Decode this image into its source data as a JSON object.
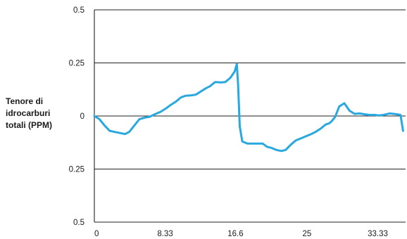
{
  "chart_data": {
    "type": "line",
    "title": "",
    "ylabel_lines": [
      "Tenore di",
      "idrocarburi",
      "totali (PPM)"
    ],
    "xlabel": "",
    "x_tick_labels": [
      {
        "value": 0,
        "label": "0"
      },
      {
        "value": 8.33,
        "label": "8.33"
      },
      {
        "value": 16.6,
        "label": "16.6"
      },
      {
        "value": 25,
        "label": "25"
      },
      {
        "value": 33.33,
        "label": "33.33"
      }
    ],
    "y_tick_labels": [
      {
        "value": 0.5,
        "label": "0.5"
      },
      {
        "value": 0.25,
        "label": "0.25"
      },
      {
        "value": 0,
        "label": "0"
      },
      {
        "value": -0.25,
        "label": "0.25"
      },
      {
        "value": -0.5,
        "label": "0.5"
      }
    ],
    "xlim": [
      0,
      36.6
    ],
    "ylim": [
      -0.5,
      0.5
    ],
    "grid": "horizontal",
    "line_color": "#29a8df",
    "series": [
      {
        "name": "",
        "x": [
          0,
          0.6,
          1.2,
          1.8,
          2.4,
          3.0,
          3.6,
          4.1,
          4.7,
          5.3,
          5.9,
          6.5,
          7.1,
          7.8,
          8.4,
          8.9,
          9.6,
          10.2,
          10.7,
          11.3,
          11.9,
          12.5,
          13.1,
          13.6,
          14.2,
          14.9,
          15.4,
          16.0,
          16.5,
          16.75,
          16.9,
          17.1,
          17.4,
          18.0,
          18.6,
          19.2,
          19.8,
          20.3,
          20.8,
          21.4,
          22.0,
          22.5,
          23.1,
          23.7,
          24.3,
          24.9,
          25.5,
          26.0,
          26.6,
          27.2,
          27.6,
          27.9,
          28.3,
          28.8,
          29.4,
          30.0,
          30.6,
          31.2,
          31.8,
          32.4,
          33.0,
          33.5,
          34.1,
          34.7,
          35.2,
          35.6,
          36.0,
          36.3
        ],
        "y": [
          0.0,
          -0.015,
          -0.045,
          -0.07,
          -0.075,
          -0.08,
          -0.085,
          -0.075,
          -0.045,
          -0.015,
          -0.008,
          -0.004,
          0.008,
          0.02,
          0.035,
          0.05,
          0.068,
          0.088,
          0.095,
          0.097,
          0.1,
          0.115,
          0.13,
          0.14,
          0.16,
          0.158,
          0.16,
          0.18,
          0.21,
          0.245,
          0.15,
          -0.05,
          -0.12,
          -0.13,
          -0.13,
          -0.13,
          -0.13,
          -0.145,
          -0.15,
          -0.16,
          -0.165,
          -0.16,
          -0.135,
          -0.115,
          -0.105,
          -0.095,
          -0.085,
          -0.075,
          -0.06,
          -0.04,
          -0.035,
          -0.025,
          -0.005,
          0.045,
          0.06,
          0.025,
          0.01,
          0.012,
          0.008,
          0.005,
          0.005,
          0.002,
          0.006,
          0.012,
          0.01,
          0.008,
          0.005,
          -0.07
        ]
      }
    ]
  }
}
